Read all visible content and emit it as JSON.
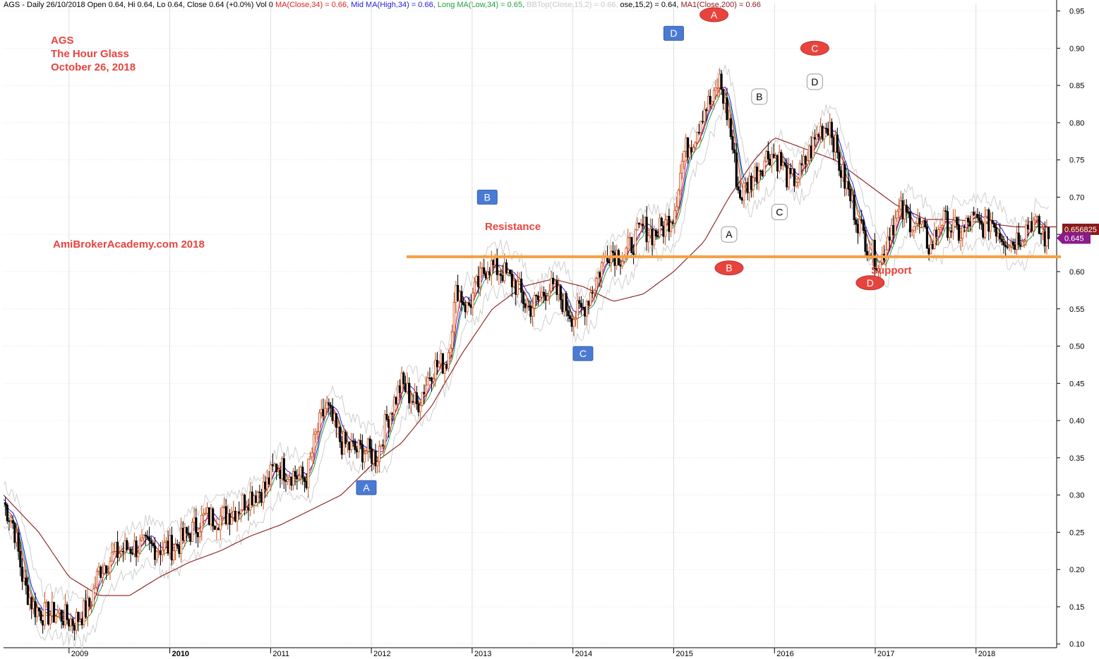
{
  "header": {
    "symbol_line": "AGS - Daily 26/10/2018 Open 0.64, Hi 0.64, Lo 0.64, Close 0.64 (+0.0%) Vol 0",
    "ma_close": "MA(Close,34) = 0.66,",
    "mid_ma": "Mid MA(High,34) = 0.66,",
    "long_ma": "Long MA(Low,34) = 0.65,",
    "bbtop": "BBTop(Close,15,2) = 0.66,",
    "bbbot_tail": "ose,15,2) = 0.64,",
    "ma1": "MA1(Close,200) = 0.66"
  },
  "annotations": {
    "ticker": "AGS",
    "company": "The Hour Glass",
    "date": "October 26, 2018",
    "site": "AmiBrokerAcademy.com  2018",
    "resistance": "Resistance",
    "support": "Support"
  },
  "colors": {
    "candle_up": "#c8501e",
    "candle_down": "#000000",
    "ma_close": "#e02020",
    "mid_ma": "#2020e0",
    "long_ma": "#20a040",
    "ma200": "#8b1a1a",
    "band": "#cfcfcf",
    "level_line": "#f5a040",
    "label_red": "#e8443e",
    "badge_blue": "#4a7bd4",
    "last_price_bg": "#8b1a1a",
    "price_tag_bg": "#8b1a8b"
  },
  "chart_data": {
    "type": "line",
    "title": "AGS - Daily 26/10/2018",
    "x_ticks": [
      "2009",
      "2010",
      "2011",
      "2012",
      "2013",
      "2014",
      "2015",
      "2016",
      "2017",
      "2018"
    ],
    "y_ticks": [
      "0.10",
      "0.15",
      "0.20",
      "0.25",
      "0.30",
      "0.35",
      "0.40",
      "0.45",
      "0.50",
      "0.55",
      "0.60",
      "0.65",
      "0.70",
      "0.75",
      "0.80",
      "0.85",
      "0.90",
      "0.95"
    ],
    "ylim": [
      0.1,
      0.95
    ],
    "xlim": [
      2008.35,
      2018.8
    ],
    "grid": true,
    "series": [
      {
        "name": "Close",
        "x": [
          2008.35,
          2008.45,
          2008.55,
          2008.65,
          2008.75,
          2008.9,
          2009.05,
          2009.2,
          2009.3,
          2009.45,
          2009.6,
          2009.75,
          2009.9,
          2010.05,
          2010.2,
          2010.35,
          2010.5,
          2010.65,
          2010.8,
          2010.95,
          2011.05,
          2011.2,
          2011.35,
          2011.45,
          2011.55,
          2011.7,
          2011.85,
          2011.95,
          2012.05,
          2012.15,
          2012.3,
          2012.45,
          2012.6,
          2012.75,
          2012.85,
          2012.95,
          2013.05,
          2013.15,
          2013.3,
          2013.45,
          2013.55,
          2013.65,
          2013.75,
          2013.85,
          2014.0,
          2014.1,
          2014.2,
          2014.35,
          2014.5,
          2014.6,
          2014.7,
          2014.8,
          2014.9,
          2015.0,
          2015.1,
          2015.2,
          2015.3,
          2015.4,
          2015.45,
          2015.55,
          2015.65,
          2015.75,
          2015.85,
          2015.95,
          2016.05,
          2016.15,
          2016.25,
          2016.35,
          2016.45,
          2016.55,
          2016.65,
          2016.75,
          2016.85,
          2016.95,
          2017.05,
          2017.15,
          2017.25,
          2017.35,
          2017.45,
          2017.55,
          2017.65,
          2017.75,
          2017.85,
          2017.95,
          2018.05,
          2018.15,
          2018.25,
          2018.35,
          2018.45,
          2018.55,
          2018.65,
          2018.75,
          2018.8
        ],
        "values": [
          0.29,
          0.26,
          0.18,
          0.15,
          0.14,
          0.14,
          0.13,
          0.15,
          0.2,
          0.22,
          0.23,
          0.23,
          0.23,
          0.23,
          0.25,
          0.27,
          0.27,
          0.28,
          0.3,
          0.31,
          0.34,
          0.33,
          0.32,
          0.38,
          0.42,
          0.37,
          0.36,
          0.36,
          0.35,
          0.4,
          0.45,
          0.42,
          0.47,
          0.48,
          0.58,
          0.55,
          0.58,
          0.61,
          0.6,
          0.58,
          0.55,
          0.56,
          0.58,
          0.57,
          0.54,
          0.55,
          0.58,
          0.63,
          0.62,
          0.64,
          0.66,
          0.65,
          0.66,
          0.68,
          0.76,
          0.78,
          0.82,
          0.83,
          0.86,
          0.8,
          0.7,
          0.72,
          0.74,
          0.76,
          0.75,
          0.72,
          0.73,
          0.76,
          0.79,
          0.8,
          0.74,
          0.7,
          0.66,
          0.63,
          0.61,
          0.66,
          0.68,
          0.67,
          0.66,
          0.63,
          0.67,
          0.66,
          0.65,
          0.67,
          0.66,
          0.67,
          0.65,
          0.64,
          0.65,
          0.67,
          0.65,
          0.64,
          0.645
        ]
      },
      {
        "name": "MA1(Close,200)",
        "x": [
          2008.35,
          2008.7,
          2009.0,
          2009.3,
          2009.6,
          2009.9,
          2010.2,
          2010.5,
          2010.8,
          2011.1,
          2011.4,
          2011.7,
          2012.0,
          2012.3,
          2012.6,
          2012.9,
          2013.2,
          2013.5,
          2013.8,
          2014.1,
          2014.4,
          2014.7,
          2015.0,
          2015.3,
          2015.55,
          2015.8,
          2016.0,
          2016.2,
          2016.4,
          2016.6,
          2016.8,
          2017.0,
          2017.2,
          2017.5,
          2017.8,
          2018.1,
          2018.4,
          2018.8
        ],
        "values": [
          0.3,
          0.25,
          0.19,
          0.165,
          0.165,
          0.19,
          0.21,
          0.225,
          0.245,
          0.26,
          0.28,
          0.3,
          0.34,
          0.37,
          0.42,
          0.49,
          0.55,
          0.58,
          0.59,
          0.58,
          0.56,
          0.57,
          0.6,
          0.64,
          0.7,
          0.75,
          0.78,
          0.77,
          0.76,
          0.75,
          0.73,
          0.71,
          0.69,
          0.67,
          0.67,
          0.665,
          0.66,
          0.66
        ]
      }
    ],
    "levels": [
      {
        "value": 0.62,
        "label": "Resistance / Support"
      }
    ],
    "last_price": "0.656825",
    "price_tag": "0.645",
    "wave_labels": [
      {
        "text": "A",
        "x": 2011.95,
        "y": 0.31,
        "style": "blue"
      },
      {
        "text": "B",
        "x": 2013.15,
        "y": 0.7,
        "style": "blue"
      },
      {
        "text": "C",
        "x": 2014.1,
        "y": 0.49,
        "style": "blue"
      },
      {
        "text": "D",
        "x": 2015.0,
        "y": 0.92,
        "style": "blue"
      },
      {
        "text": "A",
        "x": 2015.4,
        "y": 0.945,
        "style": "red"
      },
      {
        "text": "B",
        "x": 2015.55,
        "y": 0.605,
        "style": "red"
      },
      {
        "text": "C",
        "x": 2016.4,
        "y": 0.9,
        "style": "red"
      },
      {
        "text": "D",
        "x": 2016.95,
        "y": 0.585,
        "style": "red"
      },
      {
        "text": "A",
        "x": 2015.55,
        "y": 0.65,
        "style": "white"
      },
      {
        "text": "B",
        "x": 2015.85,
        "y": 0.835,
        "style": "white"
      },
      {
        "text": "C",
        "x": 2016.05,
        "y": 0.68,
        "style": "white"
      },
      {
        "text": "D",
        "x": 2016.4,
        "y": 0.855,
        "style": "white"
      }
    ]
  }
}
